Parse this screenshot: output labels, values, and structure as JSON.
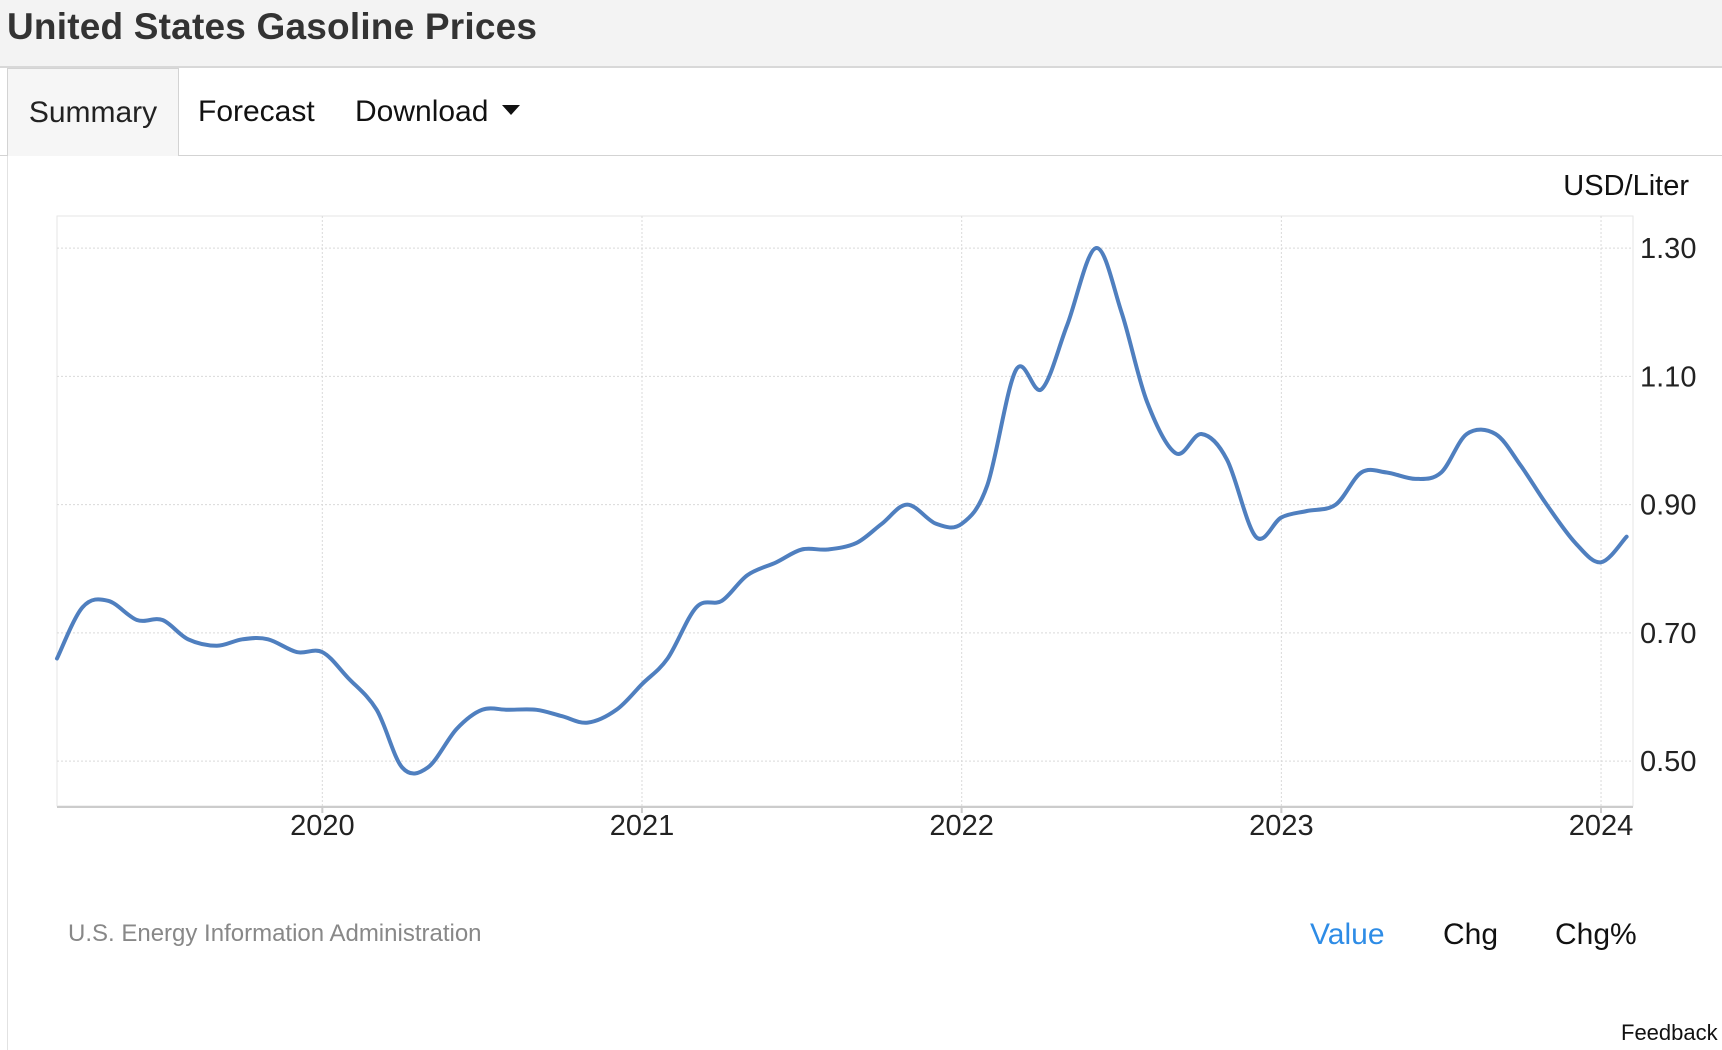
{
  "page": {
    "title": "United States Gasoline Prices"
  },
  "tabs": [
    {
      "label": "Summary",
      "active": true
    },
    {
      "label": "Forecast",
      "active": false
    },
    {
      "label": "Download",
      "active": false,
      "icon": "caret-down-icon"
    }
  ],
  "footer": {
    "source": "U.S. Energy Information Administration",
    "toggles": [
      {
        "label": "Value",
        "active": true
      },
      {
        "label": "Chg",
        "active": false
      },
      {
        "label": "Chg%",
        "active": false
      }
    ],
    "feedback": "Feedback"
  },
  "colors": {
    "line": "#4f7fbf",
    "active_toggle": "#2e8ce6",
    "grid": "#d9d9d9"
  },
  "chart_data": {
    "type": "line",
    "title": "",
    "unit": "USD/Liter",
    "xlabel": "",
    "ylabel": "",
    "x_ticks": [
      "2020",
      "2021",
      "2022",
      "2023",
      "2024"
    ],
    "y_ticks": [
      "0.50",
      "0.70",
      "0.90",
      "1.10",
      "1.30"
    ],
    "ylim": [
      0.43,
      1.35
    ],
    "xlim": [
      2019.17,
      2024.1
    ],
    "y_axis_position": "right",
    "grid": true,
    "series": [
      {
        "x": [
          2019.17,
          2019.25,
          2019.33,
          2019.42,
          2019.5,
          2019.58,
          2019.67,
          2019.75,
          2019.83,
          2019.92,
          2020.0,
          2020.08,
          2020.17,
          2020.25,
          2020.33,
          2020.42,
          2020.5,
          2020.58,
          2020.67,
          2020.75,
          2020.83,
          2020.92,
          2021.0,
          2021.08,
          2021.17,
          2021.25,
          2021.33,
          2021.42,
          2021.5,
          2021.58,
          2021.67,
          2021.75,
          2021.83,
          2021.92,
          2022.0,
          2022.08,
          2022.17,
          2022.25,
          2022.33,
          2022.42,
          2022.5,
          2022.58,
          2022.67,
          2022.75,
          2022.83,
          2022.92,
          2023.0,
          2023.08,
          2023.17,
          2023.25,
          2023.33,
          2023.42,
          2023.5,
          2023.58,
          2023.67,
          2023.75,
          2023.83,
          2023.92,
          2024.0,
          2024.08
        ],
        "y": [
          0.66,
          0.74,
          0.75,
          0.72,
          0.72,
          0.69,
          0.68,
          0.69,
          0.69,
          0.67,
          0.67,
          0.63,
          0.58,
          0.49,
          0.49,
          0.55,
          0.58,
          0.58,
          0.58,
          0.57,
          0.56,
          0.58,
          0.62,
          0.66,
          0.74,
          0.75,
          0.79,
          0.81,
          0.83,
          0.83,
          0.84,
          0.87,
          0.9,
          0.87,
          0.87,
          0.93,
          1.11,
          1.08,
          1.18,
          1.3,
          1.2,
          1.06,
          0.98,
          1.01,
          0.97,
          0.85,
          0.88,
          0.89,
          0.9,
          0.95,
          0.95,
          0.94,
          0.95,
          1.01,
          1.01,
          0.96,
          0.9,
          0.84,
          0.81,
          0.85
        ]
      }
    ]
  }
}
